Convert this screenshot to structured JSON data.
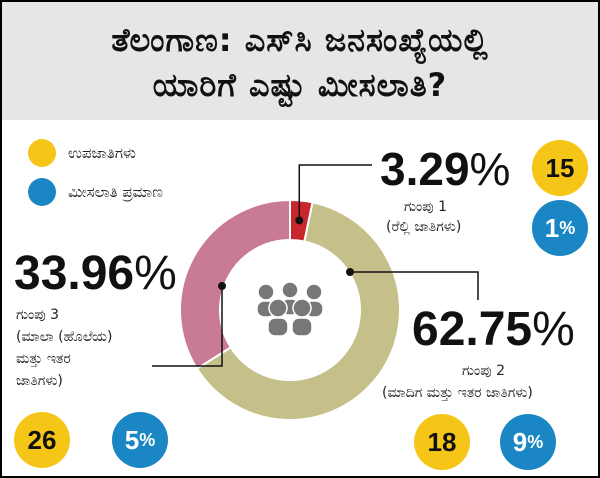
{
  "title": {
    "line1": "ತೆಲಂಗಾಣ: ಎಸ್‌ಸಿ ಜನಸಂಖ್ಯೆಯಲ್ಲಿ",
    "line2": "ಯಾರಿಗೆ ಎಷ್ಟು ಮೀಸಲಾತಿ?"
  },
  "legend": [
    {
      "label": "ಉಪಜಾತಿಗಳು",
      "color": "#f5c518"
    },
    {
      "label": "ಮೀಸಲಾತಿ ಪ್ರಮಾಣ",
      "color": "#1b86c4"
    }
  ],
  "chart_data": {
    "type": "pie",
    "variant": "donut",
    "center_icon": "people-group-icon",
    "slices": [
      {
        "group": "ಗುಂಪು 1",
        "desc": "(ರೆಲ್ಲಿ ಜಾತಿಗಳು)",
        "value": 3.29,
        "value_label": "3.29",
        "subcastes": "15",
        "reservation": "1",
        "color": "#c8282d"
      },
      {
        "group": "ಗುಂಪು 2",
        "desc": "(ಮಾದಿಗ ಮತ್ತು ಇತರ ಜಾತಿಗಳು)",
        "value": 62.75,
        "value_label": "62.75",
        "subcastes": "18",
        "reservation": "9",
        "color": "#c5c08a"
      },
      {
        "group": "ಗುಂಪು 3",
        "desc_lines": [
          "(ಮಾಲಾ (ಹೊಲೆಯ)",
          "ಮತ್ತು ಇತರ",
          "ಜಾತಿಗಳು)"
        ],
        "value": 33.96,
        "value_label": "33.96",
        "subcastes": "26",
        "reservation": "5",
        "color": "#c97a96"
      }
    ],
    "percent_sign": "%"
  }
}
